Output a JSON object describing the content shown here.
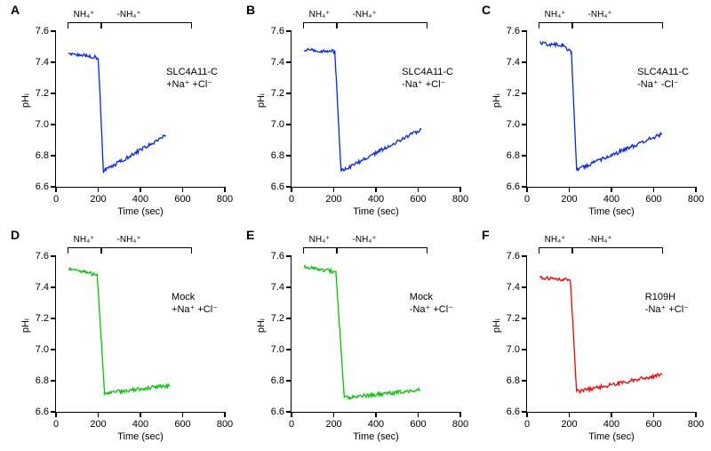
{
  "global": {
    "ylabel": "pHᵢ",
    "xlabel": "Time (sec)",
    "xlim": [
      0,
      800
    ],
    "ylim": [
      6.6,
      7.6
    ],
    "yticks": [
      6.6,
      6.8,
      7.0,
      7.2,
      7.4,
      7.6
    ],
    "yticklabels": [
      "6.6",
      "6.8",
      "7.0",
      "7.2",
      "7.4",
      "7.6"
    ],
    "xticks": [
      0,
      200,
      400,
      600,
      800
    ],
    "xticklabels": [
      "0",
      "200",
      "400",
      "600",
      "800"
    ],
    "axis_fontsize": 11,
    "tick_fontsize": 11,
    "panel_label_fontsize": 14,
    "cond_fontsize": 11,
    "perf_fontsize": 10,
    "text_color": "#000000",
    "background_color": "#ffffff",
    "noise_amplitude": 0.012,
    "perfusion": {
      "bar1_label": "NH₄⁺",
      "bar2_label": "-NH₄⁺",
      "bar1_xstart": 60,
      "bar1_xend": 215,
      "bar2_xstart": 215,
      "bar2_xend": 640
    }
  },
  "panels": [
    {
      "id": "A",
      "row": 0,
      "col": 0,
      "color": "#0026ff",
      "cond": "SLC4A11-C\n+Na⁺ +Cl⁻",
      "trace": {
        "segments": [
          {
            "x0": 60,
            "y0": 7.46,
            "x1": 200,
            "y1": 7.43
          },
          {
            "x0": 200,
            "y0": 7.43,
            "x1": 225,
            "y1": 6.7
          },
          {
            "x0": 225,
            "y0": 6.7,
            "x1": 520,
            "y1": 6.93
          }
        ]
      }
    },
    {
      "id": "B",
      "row": 0,
      "col": 1,
      "color": "#0026ff",
      "cond": "SLC4A11-C\n-Na⁺ +Cl⁻",
      "trace": {
        "segments": [
          {
            "x0": 60,
            "y0": 7.48,
            "x1": 205,
            "y1": 7.47
          },
          {
            "x0": 205,
            "y0": 7.47,
            "x1": 235,
            "y1": 6.7
          },
          {
            "x0": 235,
            "y0": 6.7,
            "x1": 615,
            "y1": 6.97
          }
        ]
      }
    },
    {
      "id": "C",
      "row": 0,
      "col": 2,
      "color": "#0026ff",
      "cond": "SLC4A11-C\n-Na⁺ -Cl⁻",
      "trace": {
        "segments": [
          {
            "x0": 60,
            "y0": 7.52,
            "x1": 170,
            "y1": 7.51
          },
          {
            "x0": 170,
            "y0": 7.51,
            "x1": 210,
            "y1": 7.46
          },
          {
            "x0": 210,
            "y0": 7.46,
            "x1": 235,
            "y1": 6.71
          },
          {
            "x0": 235,
            "y0": 6.71,
            "x1": 640,
            "y1": 6.94
          }
        ]
      }
    },
    {
      "id": "D",
      "row": 1,
      "col": 0,
      "color": "#00c800",
      "cond": "Mock\n+Na⁺ +Cl⁻",
      "trace": {
        "segments": [
          {
            "x0": 60,
            "y0": 7.52,
            "x1": 195,
            "y1": 7.48
          },
          {
            "x0": 195,
            "y0": 7.48,
            "x1": 230,
            "y1": 6.72
          },
          {
            "x0": 230,
            "y0": 6.72,
            "x1": 540,
            "y1": 6.77
          }
        ]
      }
    },
    {
      "id": "E",
      "row": 1,
      "col": 1,
      "color": "#00c800",
      "cond": "Mock\n-Na⁺ +Cl⁻",
      "trace": {
        "segments": [
          {
            "x0": 60,
            "y0": 7.53,
            "x1": 210,
            "y1": 7.5
          },
          {
            "x0": 210,
            "y0": 7.5,
            "x1": 250,
            "y1": 6.69
          },
          {
            "x0": 250,
            "y0": 6.69,
            "x1": 610,
            "y1": 6.74
          }
        ]
      }
    },
    {
      "id": "F",
      "row": 1,
      "col": 2,
      "color": "#ff0000",
      "cond": "R109H\n-Na⁺ +Cl⁻",
      "trace": {
        "segments": [
          {
            "x0": 60,
            "y0": 7.46,
            "x1": 205,
            "y1": 7.45
          },
          {
            "x0": 205,
            "y0": 7.45,
            "x1": 235,
            "y1": 6.73
          },
          {
            "x0": 235,
            "y0": 6.73,
            "x1": 640,
            "y1": 6.84
          }
        ]
      }
    }
  ]
}
